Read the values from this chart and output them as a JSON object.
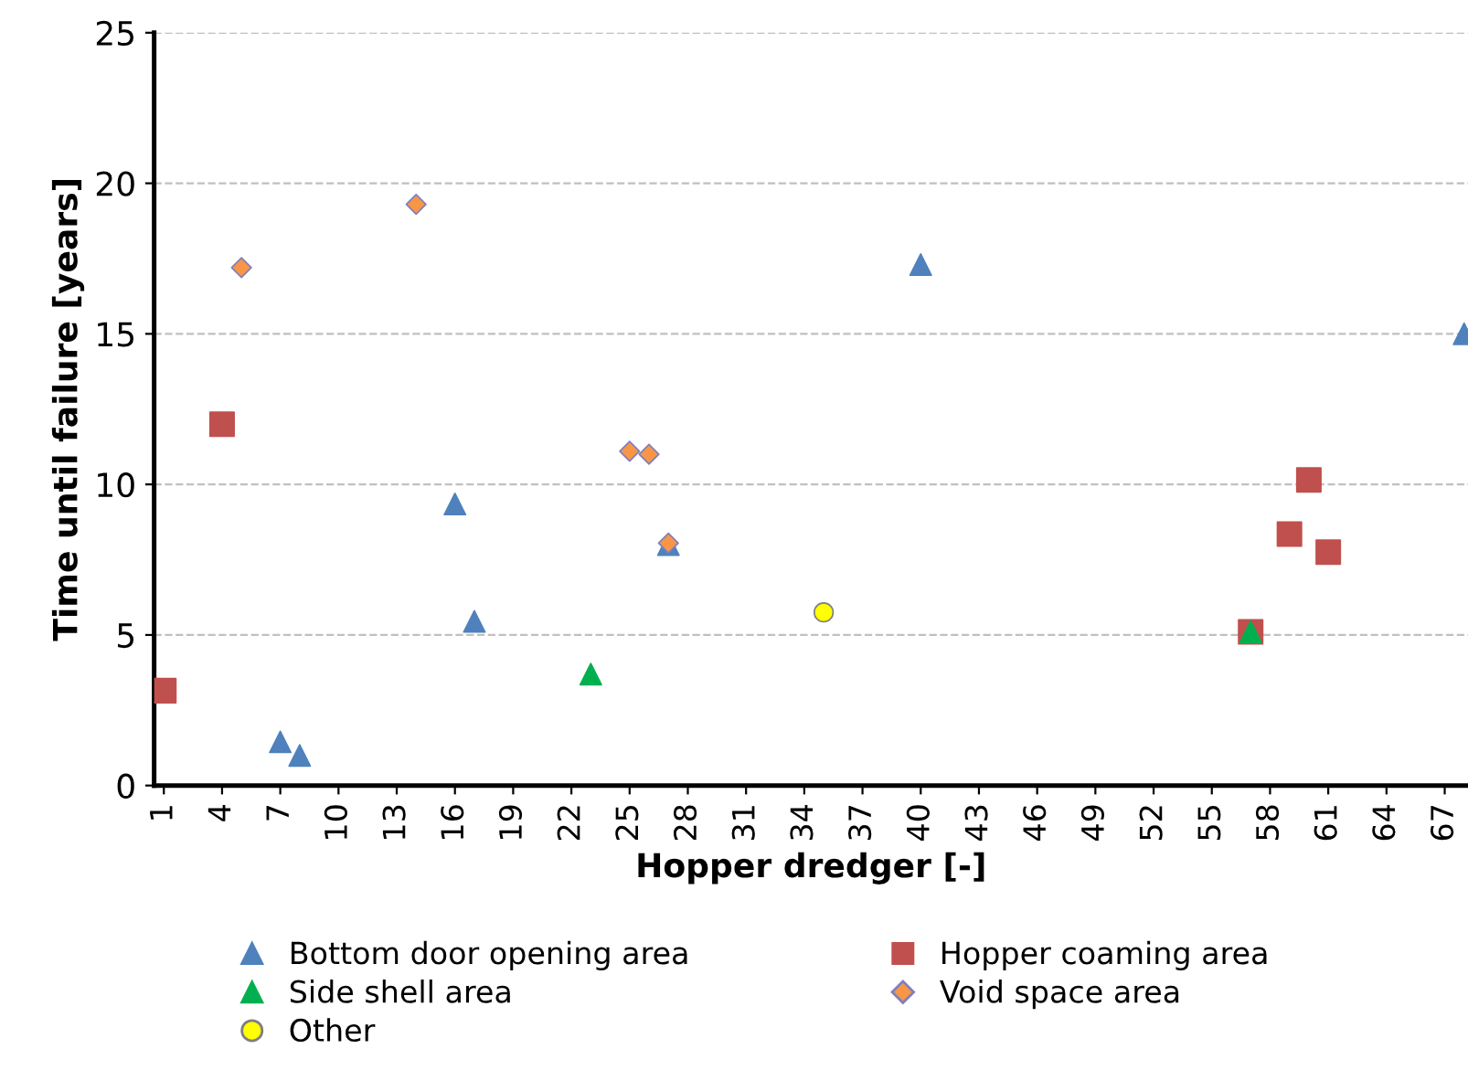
{
  "chart_data": {
    "type": "scatter",
    "xlabel": "Hopper dredger [-]",
    "ylabel": "Time until failure [years]",
    "xlim": [
      0.5,
      68.2
    ],
    "xticks": [
      1,
      4,
      7,
      10,
      13,
      16,
      19,
      22,
      25,
      28,
      31,
      34,
      37,
      40,
      43,
      46,
      49,
      52,
      55,
      58,
      61,
      64,
      67
    ],
    "ylim": [
      0,
      25
    ],
    "yticks": [
      0,
      5,
      10,
      15,
      20,
      25
    ],
    "grid": "y",
    "legend": "bottom",
    "series": [
      {
        "name": "Bottom door opening area",
        "color": "#4f81bd",
        "marker": "triangle",
        "x": [
          7,
          8,
          16,
          17,
          27,
          40,
          68
        ],
        "values": [
          1.45,
          1.0,
          9.35,
          5.45,
          8.0,
          17.3,
          15.0
        ]
      },
      {
        "name": "Hopper coaming area",
        "color": "#c0504d",
        "marker": "square",
        "x": [
          1,
          4,
          57,
          59,
          60,
          61
        ],
        "values": [
          3.15,
          12.0,
          5.1,
          8.35,
          10.15,
          7.75
        ]
      },
      {
        "name": "Side shell area",
        "color": "#00b050",
        "marker": "triangle",
        "x": [
          23,
          57
        ],
        "values": [
          3.7,
          5.1
        ]
      },
      {
        "name": "Void space area",
        "color": "#f79646",
        "marker": "diamond",
        "x": [
          5,
          14,
          25,
          26,
          27
        ],
        "values": [
          17.2,
          19.3,
          11.1,
          11.0,
          8.05
        ]
      },
      {
        "name": "Other",
        "color": "#ffff00",
        "marker": "circle",
        "x": [
          35
        ],
        "values": [
          5.75
        ]
      }
    ]
  }
}
